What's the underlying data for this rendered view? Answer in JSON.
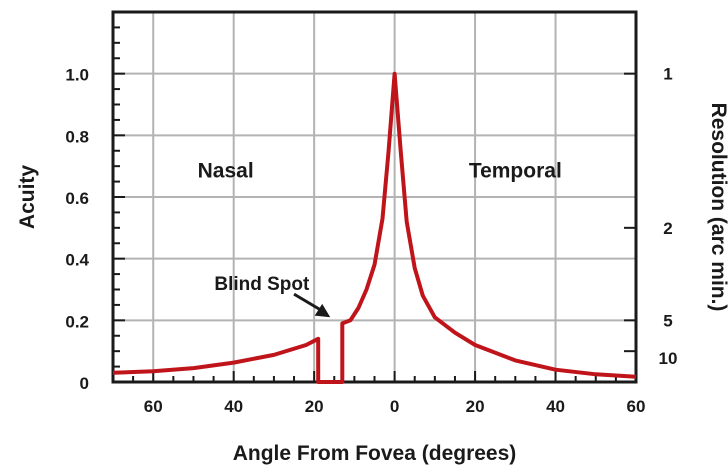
{
  "chart_data": {
    "type": "line",
    "title": "",
    "xlabel": "Angle From Fovea (degrees)",
    "ylabel": "Acuity",
    "y2label": "Resolution (arc min.)",
    "xlim": [
      -70,
      60
    ],
    "ylim": [
      0,
      1.2
    ],
    "x_ticks": [
      -60,
      -40,
      -20,
      0,
      20,
      40,
      60
    ],
    "x_tick_labels": [
      "60",
      "40",
      "20",
      "0",
      "20",
      "40",
      "60"
    ],
    "y_ticks": [
      0,
      0.2,
      0.4,
      0.6,
      0.8,
      1.0
    ],
    "y_tick_labels": [
      "0",
      "0.2",
      "0.4",
      "0.6",
      "0.8",
      "1.0"
    ],
    "y2_ticks": [
      {
        "label": "1",
        "acuity": 1.0
      },
      {
        "label": "2",
        "acuity": 0.5
      },
      {
        "label": "5",
        "acuity": 0.2
      },
      {
        "label": "10",
        "acuity": 0.1
      }
    ],
    "grid": true,
    "line_color": "#c0141b",
    "annotations": {
      "nasal": "Nasal",
      "temporal": "Temporal",
      "blind_spot": "Blind Spot"
    },
    "series": [
      {
        "x": [
          -70,
          -60,
          -50,
          -40,
          -30,
          -22,
          -19,
          -19,
          -13,
          -13,
          -11,
          -9,
          -7,
          -5,
          -3,
          -1.5,
          0,
          1.5,
          3,
          5,
          7,
          10,
          15,
          20,
          30,
          40,
          50,
          60
        ],
        "y": [
          0.03,
          0.035,
          0.045,
          0.063,
          0.088,
          0.12,
          0.14,
          0,
          0,
          0.19,
          0.2,
          0.24,
          0.3,
          0.38,
          0.53,
          0.75,
          1.0,
          0.75,
          0.52,
          0.37,
          0.28,
          0.21,
          0.16,
          0.12,
          0.07,
          0.04,
          0.025,
          0.017
        ]
      }
    ]
  }
}
